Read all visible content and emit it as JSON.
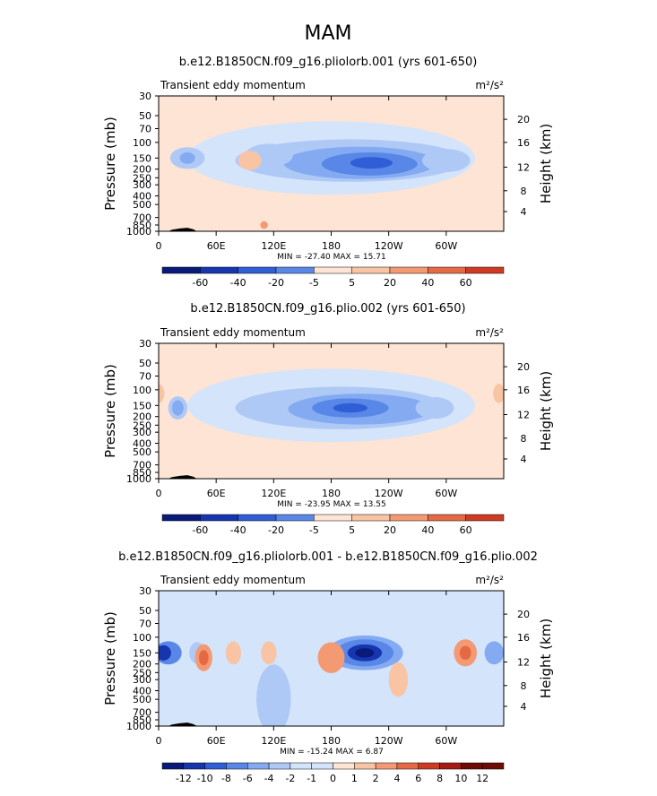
{
  "figure_title": "MAM",
  "chart_data": [
    {
      "type": "heatmap",
      "title": "b.e12.B1850CN.f09_g16.pliolorb.001 (yrs 601-650)",
      "left_label": "Transient eddy momentum",
      "units_text": "m²/s²",
      "ylabel": "Pressure (mb)",
      "ylabel_right": "Height (km)",
      "x_ticks": [
        "0",
        "60E",
        "120E",
        "180",
        "120W",
        "60W"
      ],
      "y_ticks": [
        "30",
        "50",
        "70",
        "100",
        "150",
        "200",
        "250",
        "300",
        "400",
        "500",
        "700",
        "850",
        "1000"
      ],
      "y_ticks_right": [
        "20",
        "16",
        "12",
        "8",
        "4"
      ],
      "stats": "MIN = -27.40   MAX =  15.71",
      "min": -27.4,
      "max": 15.71,
      "colorbar_labels": [
        "-60",
        "-40",
        "-20",
        "-5",
        "5",
        "20",
        "40",
        "60"
      ]
    },
    {
      "type": "heatmap",
      "title": "b.e12.B1850CN.f09_g16.plio.002 (yrs 601-650)",
      "left_label": "Transient eddy momentum",
      "units_text": "m²/s²",
      "ylabel": "Pressure (mb)",
      "ylabel_right": "Height (km)",
      "x_ticks": [
        "0",
        "60E",
        "120E",
        "180",
        "120W",
        "60W"
      ],
      "y_ticks": [
        "30",
        "50",
        "70",
        "100",
        "150",
        "200",
        "250",
        "300",
        "400",
        "500",
        "700",
        "850",
        "1000"
      ],
      "y_ticks_right": [
        "20",
        "16",
        "12",
        "8",
        "4"
      ],
      "stats": "MIN = -23.95   MAX =  13.55",
      "min": -23.95,
      "max": 13.55,
      "colorbar_labels": [
        "-60",
        "-40",
        "-20",
        "-5",
        "5",
        "20",
        "40",
        "60"
      ]
    },
    {
      "type": "heatmap",
      "title": "b.e12.B1850CN.f09_g16.pliolorb.001 - b.e12.B1850CN.f09_g16.plio.002",
      "left_label": "Transient eddy momentum",
      "units_text": "m²/s²",
      "ylabel": "Pressure (mb)",
      "ylabel_right": "Height (km)",
      "x_ticks": [
        "0",
        "60E",
        "120E",
        "180",
        "120W",
        "60W"
      ],
      "y_ticks": [
        "30",
        "50",
        "70",
        "100",
        "150",
        "200",
        "250",
        "300",
        "400",
        "500",
        "700",
        "850",
        "1000"
      ],
      "y_ticks_right": [
        "20",
        "16",
        "12",
        "8",
        "4"
      ],
      "stats": "MIN = -15.24   MAX =   6.87",
      "min": -15.24,
      "max": 6.87,
      "colorbar_labels": [
        "-12",
        "-10",
        "-8",
        "-6",
        "-4",
        "-2",
        "-1",
        "0",
        "1",
        "2",
        "4",
        "6",
        "8",
        "10",
        "12"
      ]
    }
  ],
  "colors": {
    "blues": [
      "#0a1a7a",
      "#1636b0",
      "#2f5ed6",
      "#5887e8",
      "#84abf2",
      "#afc9f6",
      "#d4e4fb"
    ],
    "reds": [
      "#fde4d4",
      "#f9c4a4",
      "#f39a72",
      "#e56a44",
      "#cf3b22",
      "#a51c12",
      "#6e0b06"
    ],
    "diff_blues": [
      "#0a1a7a",
      "#1636b0",
      "#2f5ed6",
      "#5887e8",
      "#84abf2",
      "#afc9f6",
      "#d4e4fb"
    ],
    "diff_reds": [
      "#fde4d4",
      "#f9c4a4",
      "#f39a72",
      "#e56a44",
      "#cf3b22",
      "#a51c12",
      "#6e0b06"
    ],
    "topography": "#000000"
  }
}
